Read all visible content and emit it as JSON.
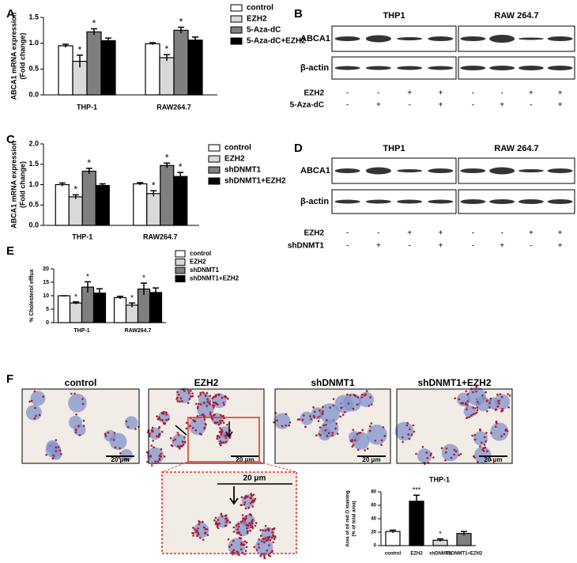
{
  "panel_letters": [
    "A",
    "B",
    "C",
    "D",
    "E",
    "F"
  ],
  "chart_data": [
    {
      "type": "bar",
      "ylabel": [
        "ABCA1 mRNA expression",
        "(Fold change)"
      ],
      "categories": [
        "THP-1",
        "RAW264.7"
      ],
      "ylim": [
        0,
        1.5
      ],
      "yticks": [
        {
          "value": 0,
          "label": "0.0"
        },
        0.5,
        {
          "value": 1,
          "label": "1.0"
        },
        1.5
      ],
      "series": [
        {
          "name": "control",
          "color": "#ffffff",
          "values": [
            0.95,
            0.99
          ],
          "errors": [
            0.03,
            0.02
          ],
          "significance": [
            null,
            null
          ]
        },
        {
          "name": "EZH2",
          "color": "#d9d9d9",
          "values": [
            0.65,
            0.72
          ],
          "errors": [
            0.12,
            0.06
          ],
          "significance": [
            "*",
            "*"
          ]
        },
        {
          "name": "5-Aza-dC",
          "color": "#7f7f7f",
          "values": [
            1.22,
            1.25
          ],
          "errors": [
            0.06,
            0.06
          ],
          "significance": [
            "*",
            "*"
          ]
        },
        {
          "name": "5-Aza-dC+EZH2",
          "color": "#000000",
          "values": [
            1.05,
            1.06
          ],
          "errors": [
            0.05,
            0.06
          ],
          "significance": [
            null,
            null
          ]
        }
      ]
    },
    {
      "type": "bar",
      "ylabel": [
        "ABCA1 mRNA expression",
        "(Fold change)"
      ],
      "categories": [
        "THP-1",
        "RAW264.7"
      ],
      "ylim": [
        0,
        2
      ],
      "yticks": [
        {
          "value": 0,
          "label": "0.0"
        },
        0.5,
        {
          "value": 1,
          "label": "1.0"
        },
        1.5,
        {
          "value": 2,
          "label": "2.0"
        }
      ],
      "series": [
        {
          "name": "control",
          "color": "#ffffff",
          "values": [
            1.0,
            1.02
          ],
          "errors": [
            0.04,
            0.03
          ],
          "significance": [
            null,
            null
          ]
        },
        {
          "name": "EZH2",
          "color": "#d9d9d9",
          "values": [
            0.7,
            0.78
          ],
          "errors": [
            0.05,
            0.07
          ],
          "significance": [
            "*",
            "*"
          ]
        },
        {
          "name": "shDNMT1",
          "color": "#7f7f7f",
          "values": [
            1.33,
            1.47
          ],
          "errors": [
            0.07,
            0.06
          ],
          "significance": [
            "*",
            "*"
          ]
        },
        {
          "name": "shDNMT1+EZH2",
          "color": "#000000",
          "values": [
            0.98,
            1.2
          ],
          "errors": [
            0.04,
            0.1
          ],
          "significance": [
            null,
            "*"
          ]
        }
      ]
    },
    {
      "type": "bar",
      "ylabel": [
        "% Cholesterol efflux"
      ],
      "categories": [
        "THP-1",
        "RAW264.7"
      ],
      "ylim": [
        0,
        20
      ],
      "yticks": [
        0,
        5,
        10,
        15,
        20
      ],
      "series": [
        {
          "name": "control",
          "color": "#ffffff",
          "values": [
            10,
            9.3
          ],
          "errors": [
            0,
            0.5
          ],
          "significance": [
            null,
            null
          ]
        },
        {
          "name": "EZH2",
          "color": "#d9d9d9",
          "values": [
            7.3,
            6.5
          ],
          "errors": [
            0.4,
            0.8
          ],
          "significance": [
            "*",
            "*"
          ]
        },
        {
          "name": "shDNMT1",
          "color": "#7f7f7f",
          "values": [
            13.2,
            12.5
          ],
          "errors": [
            2,
            2.2
          ],
          "significance": [
            "*",
            "*"
          ]
        },
        {
          "name": "shDNMT1+EZH2",
          "color": "#000000",
          "values": [
            11,
            11.2
          ],
          "errors": [
            1.6,
            1.7
          ],
          "significance": [
            null,
            null
          ]
        }
      ]
    },
    {
      "type": "bar",
      "title": "THP-1",
      "ylabel": [
        "Area of oil red O staining",
        "(% of total area)"
      ],
      "categories": [
        "control",
        "EZH2",
        "shDNMT1",
        "shDNMT1+EZH2"
      ],
      "ylim": [
        0,
        80
      ],
      "yticks": [
        0,
        20,
        40,
        60,
        80
      ],
      "series": [
        {
          "colors": [
            "#ffffff",
            "#000000",
            "#d9d9d9",
            "#7f7f7f"
          ],
          "values": [
            21,
            66,
            8,
            18
          ],
          "errors": [
            2,
            9,
            2,
            3
          ],
          "significance": [
            null,
            "***",
            "*",
            null
          ]
        }
      ]
    }
  ],
  "blots": [
    {
      "cell_lines": [
        "THP1",
        "RAW 264.7"
      ],
      "proteins": [
        "ABCA1",
        "β-actin"
      ],
      "conditions": [
        {
          "name": "EZH2",
          "signs": [
            "-",
            "-",
            "+",
            "+",
            "-",
            "-",
            "+",
            "+"
          ]
        },
        {
          "name": "5-Aza-dC",
          "signs": [
            "-",
            "+",
            "-",
            "+",
            "-",
            "+",
            "-",
            "+"
          ]
        }
      ]
    },
    {
      "cell_lines": [
        "THP1",
        "RAW 264.7"
      ],
      "proteins": [
        "ABCA1",
        "β-actin"
      ],
      "conditions": [
        {
          "name": "EZH2",
          "signs": [
            "-",
            "-",
            "+",
            "+",
            "-",
            "-",
            "+",
            "+"
          ]
        },
        {
          "name": "shDNMT1",
          "signs": [
            "-",
            "+",
            "-",
            "+",
            "-",
            "+",
            "-",
            "+"
          ]
        }
      ]
    }
  ],
  "micrographs": {
    "labels": [
      "control",
      "EZH2",
      "shDNMT1",
      "shDNMT1+EZH2"
    ],
    "scale_bar": "20 μm"
  }
}
